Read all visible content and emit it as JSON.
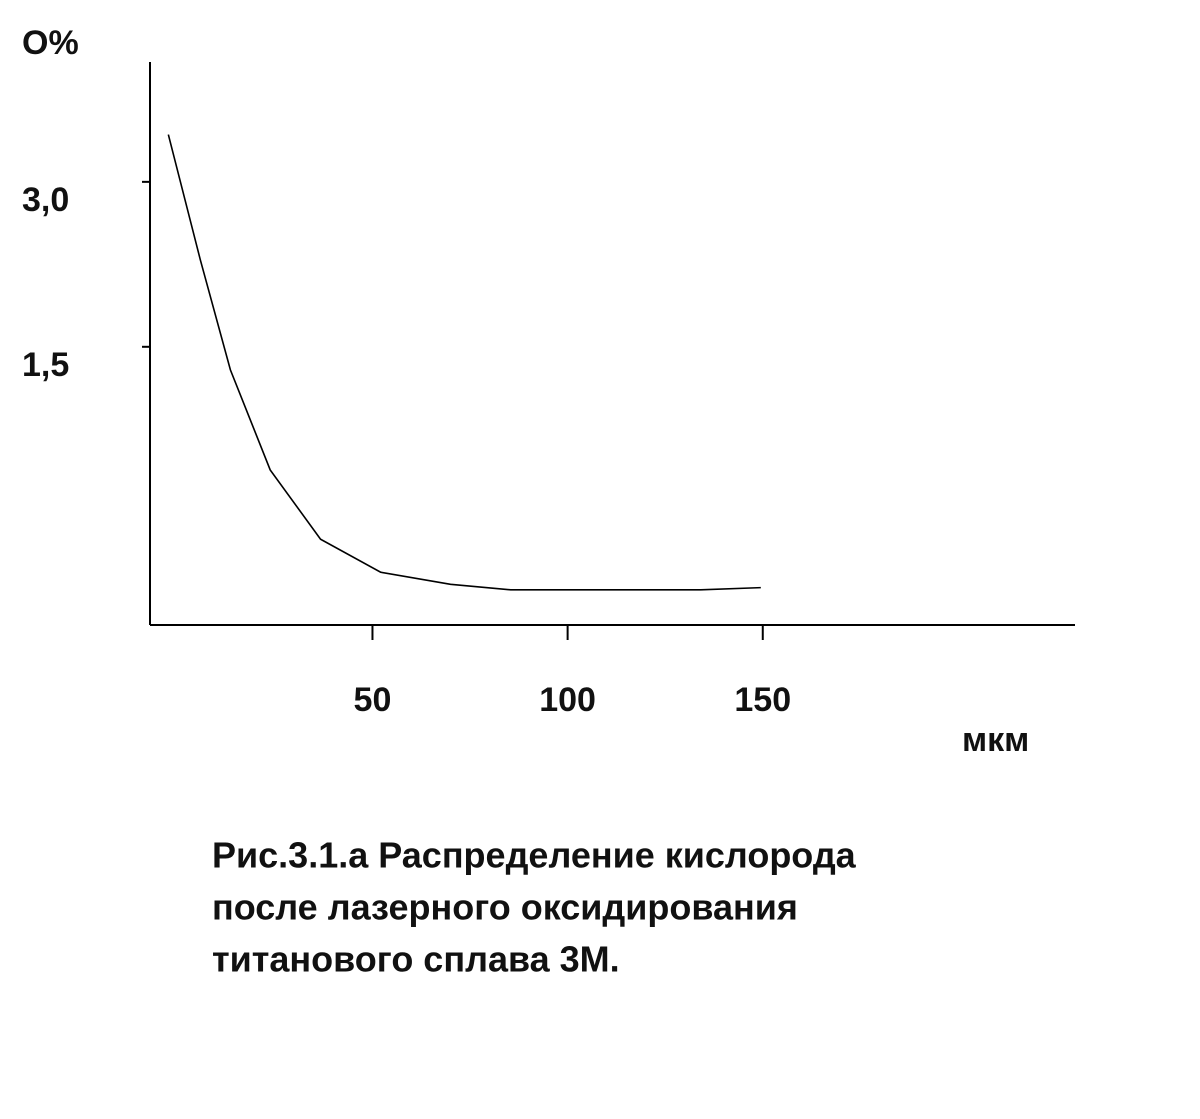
{
  "chart_data": {
    "type": "line",
    "y_label": "O%",
    "x_label": "мкм",
    "caption": [
      "Рис.3.1.а Распределение кислорода",
      "после лазерного оксидирования",
      "титанового сплава 3М."
    ],
    "x": [
      -2.3,
      5.9,
      13.6,
      23.8,
      36.7,
      52.1,
      70,
      85.4,
      108.5,
      134.1,
      149.5
    ],
    "series": [
      {
        "color": "#000000",
        "values": [
          3.43,
          2.29,
          1.29,
          0.38,
          -0.25,
          -0.55,
          -0.66,
          -0.71,
          -0.71,
          -0.71,
          -0.69
        ]
      }
    ],
    "xlim": [
      -7,
      230
    ],
    "ylim": [
      -1.03,
      4.09
    ],
    "xticks": [
      50,
      100,
      150
    ],
    "yticks": [
      {
        "value": 1.5,
        "label": "1,5"
      },
      {
        "value": 3.0,
        "label": "3,0"
      }
    ],
    "grid": false
  }
}
